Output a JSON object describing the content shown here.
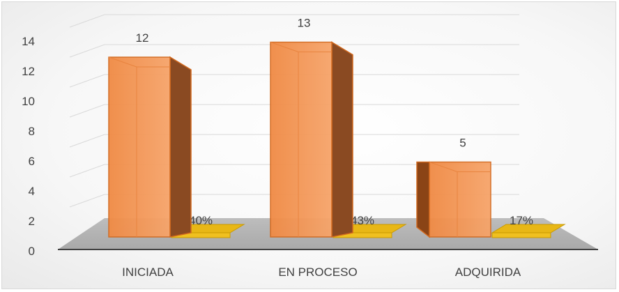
{
  "chart_data": {
    "type": "bar",
    "categories": [
      "INICIADA",
      "EN PROCESO",
      "ADQUIRIDA"
    ],
    "series": [
      {
        "values": [
          12,
          13,
          5
        ],
        "color": "#f4a460",
        "labels": [
          "12",
          "13",
          "5"
        ]
      },
      {
        "values": [
          40,
          43,
          17
        ],
        "color": "#f0c020",
        "labels": [
          "40%",
          "43%",
          "17%"
        ]
      }
    ],
    "yticks": [
      "0",
      "2",
      "4",
      "6",
      "8",
      "10",
      "12",
      "14"
    ],
    "ylim": [
      0,
      14
    ],
    "grid": true,
    "legend": "none"
  }
}
